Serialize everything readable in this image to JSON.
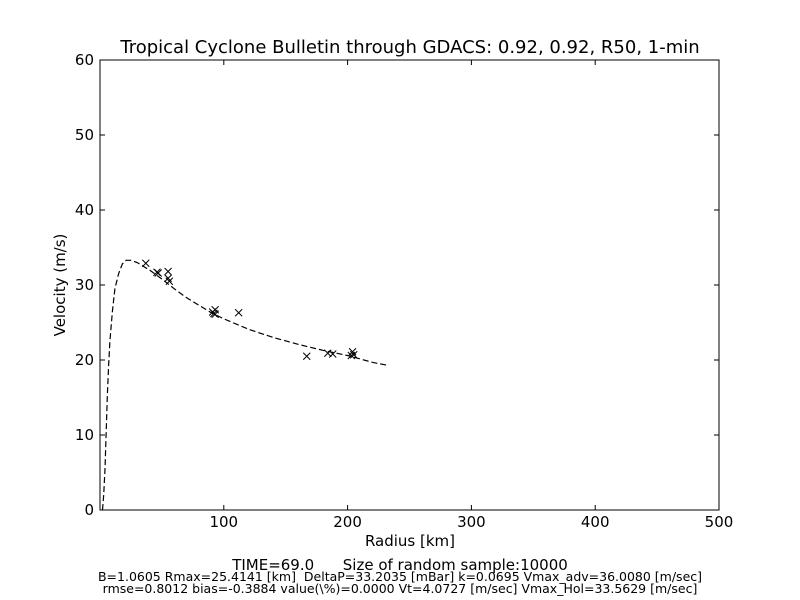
{
  "chart_data": {
    "type": "scatter",
    "title": "Tropical Cyclone Bulletin through GDACS: 0.92, 0.92, R50, 1-min",
    "xlabel": "Radius [km]",
    "ylabel": "Velocity (m/s)",
    "xlim": [
      0,
      500
    ],
    "ylim": [
      0,
      60
    ],
    "xticks": [
      {
        "v": 100,
        "label": "100"
      },
      {
        "v": 200,
        "label": "200"
      },
      {
        "v": 300,
        "label": "300"
      },
      {
        "v": 400,
        "label": "400"
      },
      {
        "v": 500,
        "label": "500"
      }
    ],
    "yticks": [
      {
        "v": 0,
        "label": "0"
      },
      {
        "v": 10,
        "label": "10"
      },
      {
        "v": 20,
        "label": "20"
      },
      {
        "v": 30,
        "label": "30"
      },
      {
        "v": 40,
        "label": "40"
      },
      {
        "v": 50,
        "label": "50"
      },
      {
        "v": 60,
        "label": "60"
      }
    ],
    "grid": false,
    "series": [
      {
        "kind": "scatter",
        "marker": "x",
        "color": "#000000",
        "points": [
          [
            37,
            32.9
          ],
          [
            46,
            31.7
          ],
          [
            47,
            31.6
          ],
          [
            55,
            31.8
          ],
          [
            55,
            30.9
          ],
          [
            56,
            30.5
          ],
          [
            91,
            26.4
          ],
          [
            92,
            26.2
          ],
          [
            93,
            26.7
          ],
          [
            93,
            26.1
          ],
          [
            112,
            26.3
          ],
          [
            167,
            20.5
          ],
          [
            184,
            20.9
          ],
          [
            188,
            20.8
          ],
          [
            203,
            20.6
          ],
          [
            204,
            21.1
          ],
          [
            205,
            20.7
          ]
        ]
      },
      {
        "kind": "line",
        "style": "dashed",
        "color": "#000000",
        "points": [
          [
            2,
            0.0
          ],
          [
            3,
            2.0
          ],
          [
            4,
            5.5
          ],
          [
            5,
            10.5
          ],
          [
            6,
            15.5
          ],
          [
            7,
            19.5
          ],
          [
            8,
            22.5
          ],
          [
            10,
            26.5
          ],
          [
            12,
            29.5
          ],
          [
            15,
            31.5
          ],
          [
            18,
            32.8
          ],
          [
            21,
            33.3
          ],
          [
            25,
            33.3
          ],
          [
            30,
            33.0
          ],
          [
            40,
            32.0
          ],
          [
            50,
            30.8
          ],
          [
            60,
            29.5
          ],
          [
            70,
            28.3
          ],
          [
            80,
            27.3
          ],
          [
            90,
            26.3
          ],
          [
            100,
            25.5
          ],
          [
            120,
            24.1
          ],
          [
            140,
            23.0
          ],
          [
            160,
            22.1
          ],
          [
            180,
            21.3
          ],
          [
            200,
            20.6
          ],
          [
            220,
            19.7
          ],
          [
            232,
            19.3
          ]
        ]
      }
    ]
  },
  "footer": {
    "line1": "TIME=69.0      Size of random sample:10000",
    "line2": "B=1.0605 Rmax=25.4141 [km]  DeltaP=33.2035 [mBar] k=0.0695 Vmax_adv=36.0080 [m/sec]",
    "line3": "rmse=0.8012 bias=-0.3884 value(\\%)=0.0000 Vt=4.0727 [m/sec] Vmax_Hol=33.5629 [m/sec]"
  }
}
